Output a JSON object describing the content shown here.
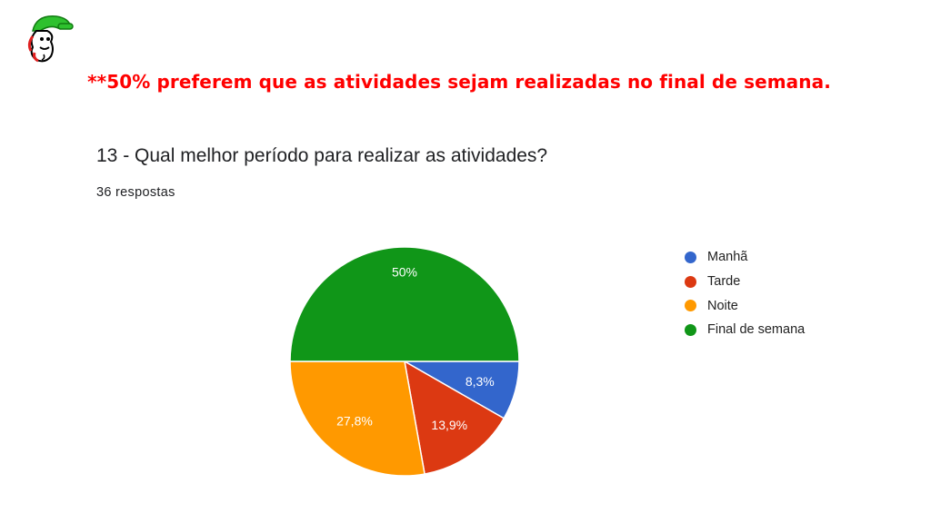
{
  "slide": {
    "headline": "**50% preferem que as atividades sejam realizadas no final de semana."
  },
  "form": {
    "question": "13 - Qual melhor período para realizar as atividades?",
    "responses": "36 respostas"
  },
  "colors": {
    "headline": "#ff0000",
    "Manhã": "#3366cc",
    "Tarde": "#dc3912",
    "Noite": "#ff9900",
    "Final de semana": "#109618"
  },
  "chart_data": {
    "type": "pie",
    "categories": [
      "Manhã",
      "Tarde",
      "Noite",
      "Final de semana"
    ],
    "values": [
      8.3,
      13.9,
      27.8,
      50
    ],
    "data_labels": [
      "8,3%",
      "13,9%",
      "27,8%",
      "50%"
    ],
    "colors": [
      "#3366cc",
      "#dc3912",
      "#ff9900",
      "#109618"
    ],
    "legend_position": "right"
  }
}
